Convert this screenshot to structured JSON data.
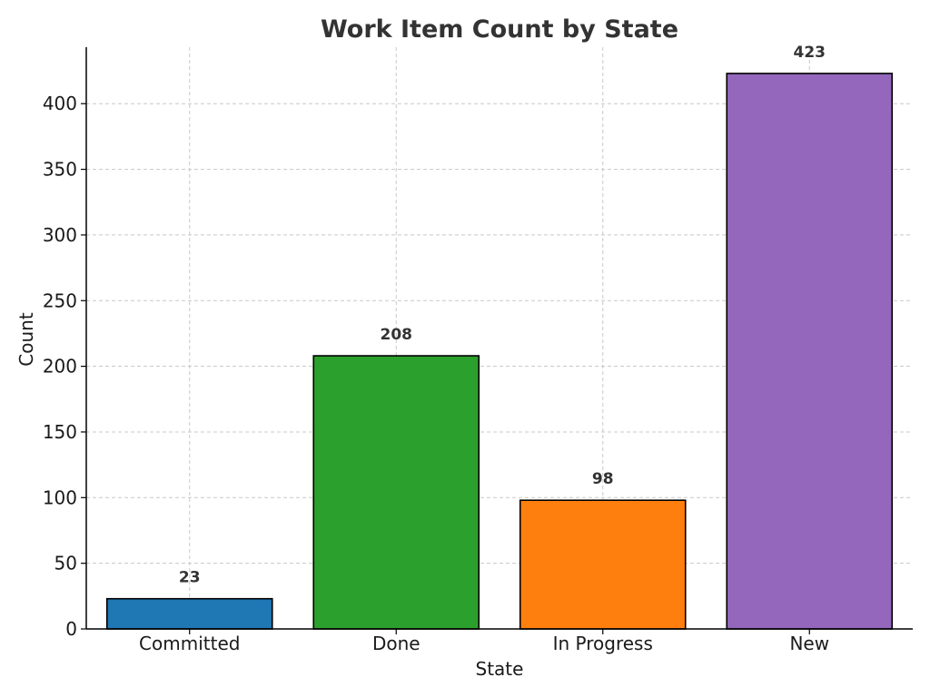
{
  "chart_data": {
    "type": "bar",
    "title": "Work Item Count by State",
    "xlabel": "State",
    "ylabel": "Count",
    "categories": [
      "Committed",
      "Done",
      "In Progress",
      "New"
    ],
    "values": [
      23,
      208,
      98,
      423
    ],
    "data_labels": [
      "23",
      "208",
      "98",
      "423"
    ],
    "colors": [
      "#1f77b4",
      "#2ca02c",
      "#ff7f0e",
      "#9467bd"
    ],
    "ylim": [
      0,
      443
    ],
    "yticks": [
      0,
      50,
      100,
      150,
      200,
      250,
      300,
      350,
      400
    ],
    "ytick_labels": [
      "0",
      "50",
      "100",
      "150",
      "200",
      "250",
      "300",
      "350",
      "400"
    ],
    "grid": true,
    "legend": "none"
  }
}
